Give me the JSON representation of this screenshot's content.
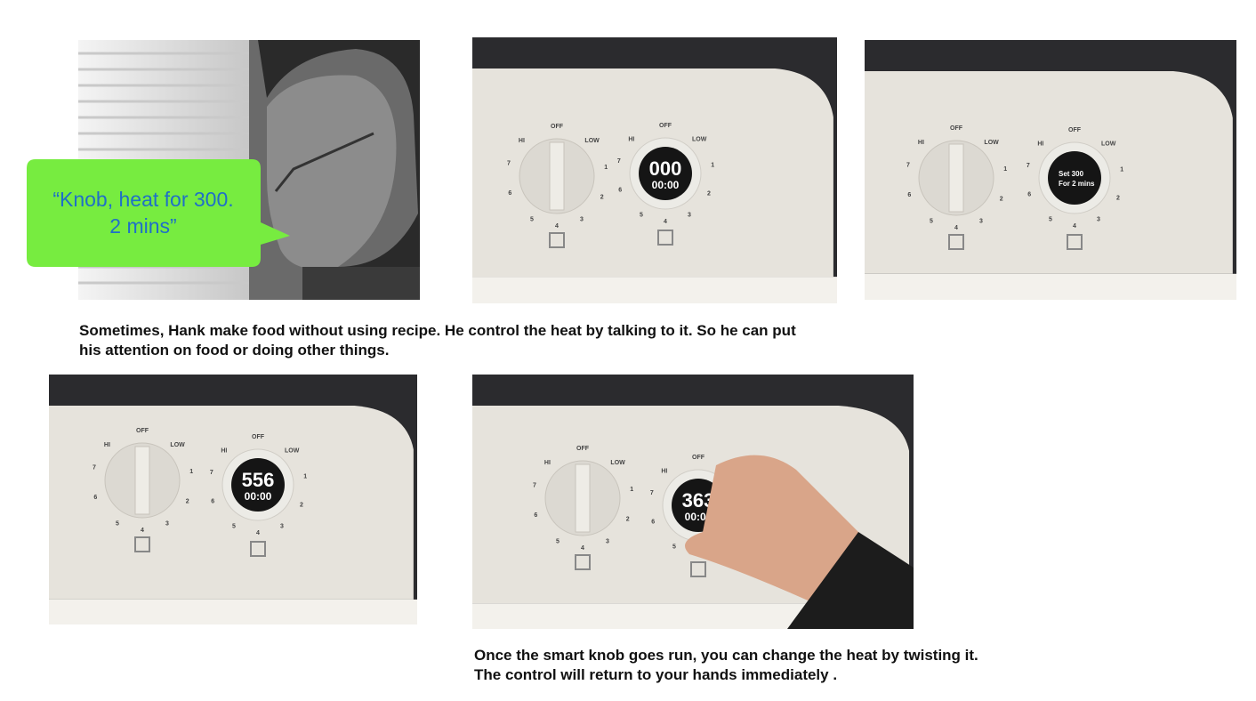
{
  "speech_bubble": [
    "“Knob, heat for 300.",
    "2 mins”"
  ],
  "captions": [
    [
      "Sometimes, Hank make food without using recipe. He control the heat by talking to it. So he can put",
      "his attention on food or doing other things."
    ],
    [
      "Once the smart knob goes run, you can change the heat by twisting it.",
      "The control will return  to your hands immediately ."
    ]
  ],
  "knob_scale": [
    "OFF",
    "LOW",
    "1",
    "2",
    "3",
    "4",
    "5",
    "6",
    "7",
    "HI"
  ],
  "displays": [
    [
      "000",
      "00:00"
    ],
    [
      "Set 300",
      "For 2 mins"
    ],
    [
      "556",
      "00:00"
    ],
    [
      "363",
      "00:00"
    ]
  ]
}
